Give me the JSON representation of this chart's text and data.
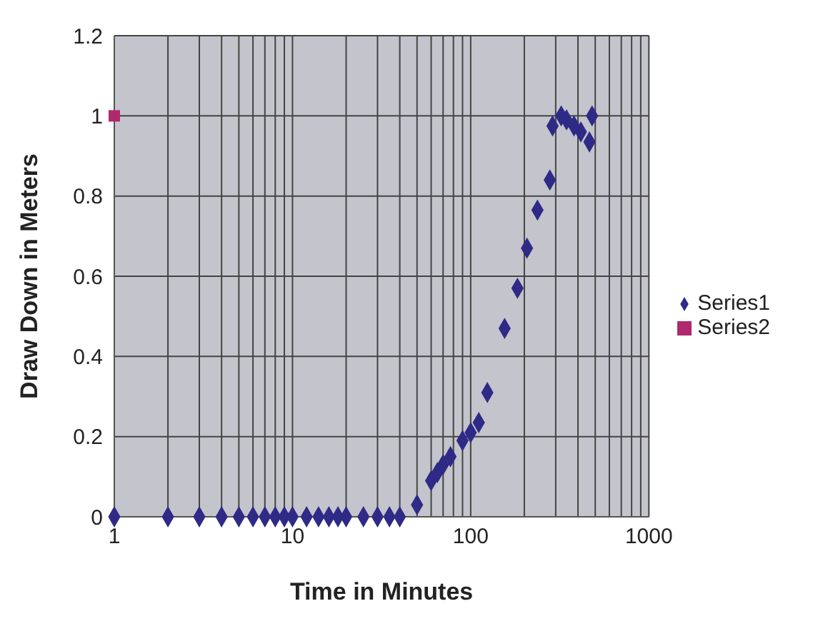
{
  "chart_data": {
    "type": "scatter",
    "xlabel": "Time in Minutes",
    "ylabel": "Draw Down in Meters",
    "log": "x",
    "grid": true,
    "legend": "right",
    "xlim": [
      1,
      1000
    ],
    "ylim": [
      0,
      1.2
    ],
    "xticks": [
      1,
      {
        "value": 2,
        "label": null
      },
      {
        "value": 3,
        "label": null
      },
      {
        "value": 4,
        "label": null
      },
      {
        "value": 5,
        "label": null
      },
      {
        "value": 6,
        "label": null
      },
      {
        "value": 7,
        "label": null
      },
      {
        "value": 8,
        "label": null
      },
      {
        "value": 9,
        "label": null
      },
      10,
      {
        "value": 20,
        "label": null
      },
      {
        "value": 30,
        "label": null
      },
      {
        "value": 40,
        "label": null
      },
      {
        "value": 50,
        "label": null
      },
      {
        "value": 60,
        "label": null
      },
      {
        "value": 70,
        "label": null
      },
      {
        "value": 80,
        "label": null
      },
      {
        "value": 90,
        "label": null
      },
      100,
      {
        "value": 200,
        "label": null
      },
      {
        "value": 300,
        "label": null
      },
      {
        "value": 400,
        "label": null
      },
      {
        "value": 500,
        "label": null
      },
      {
        "value": 600,
        "label": null
      },
      {
        "value": 700,
        "label": null
      },
      {
        "value": 800,
        "label": null
      },
      {
        "value": 900,
        "label": null
      },
      1000
    ],
    "yticks": [
      0,
      0.2,
      0.4,
      0.6,
      0.8,
      1,
      1.2
    ],
    "series": [
      {
        "name": "Series1",
        "color": "#2e2a86",
        "marker": "diamond",
        "x": [
          1,
          2,
          3,
          4,
          5,
          6,
          7,
          8,
          9,
          10,
          12,
          14,
          16,
          18,
          20,
          25,
          30,
          35,
          40,
          50,
          60,
          65,
          70,
          77,
          90,
          100,
          111,
          124,
          155,
          183,
          207,
          237,
          278,
          288,
          322,
          345,
          380,
          415,
          464,
          480
        ],
        "values": [
          0,
          0,
          0,
          0,
          0,
          0,
          0,
          0,
          0,
          0,
          0,
          0,
          0,
          0,
          0,
          0,
          0,
          0,
          0,
          0.03,
          0.09,
          0.11,
          0.13,
          0.15,
          0.19,
          0.21,
          0.235,
          0.31,
          0.47,
          0.57,
          0.67,
          0.765,
          0.84,
          0.975,
          1.0,
          0.99,
          0.975,
          0.96,
          0.935,
          1.0
        ]
      },
      {
        "name": "Series2",
        "color": "#b0286e",
        "marker": "square",
        "x": [
          1
        ],
        "values": [
          1
        ]
      }
    ]
  }
}
